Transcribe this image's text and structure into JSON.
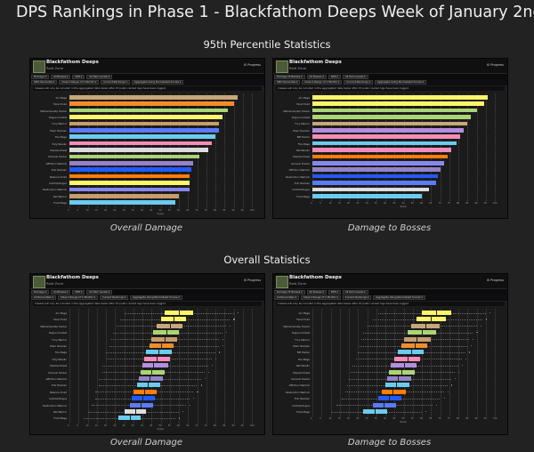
{
  "title": "DPS Rankings in Phase 1 - Blackfathom Deeps Week of January 2nd",
  "sections": {
    "percentile_title": "95th Percentile Statistics",
    "overall_title": "Overall Statistics"
  },
  "captions": {
    "overall_damage": "Overall Damage",
    "damage_to_bosses": "Damage to Bosses"
  },
  "panel": {
    "zone_name": "Blackfathom Deeps",
    "zone_sub": "Raid Zone",
    "progress": "⚙ Progress",
    "nav_overall": [
      "Damage ▾",
      "All Bosses ▾",
      "DPS ▾",
      "All Item Levels ▾"
    ],
    "nav_bosses": [
      "Damage To Bosses ▾",
      "All Bosses ▾",
      "DPS ▾",
      "All Item Levels ▾"
    ],
    "filters": [
      "95th Percentile ▾",
      "Class ▾ Range (if 1 Month) ▾",
      "Current Rankings ▾",
      "Aggregate Using Normalized Scores ▾"
    ],
    "filters_all": [
      "All Percentiles ▾",
      "Class ▾ Range (if 1 Month) ▾",
      "Current Rankings ▾",
      "Aggregate Using Normalized Scores ▾"
    ],
    "note": "Classes will only be included in the aggregated data below after 15 public ranked logs have been logged.",
    "axis_title": "Score"
  },
  "specs_overall": [
    "Arc Mage",
    "Feral Druid",
    "Marksmanship Hunter",
    "Rogue Combat",
    "Fury Warrior",
    "Elem Shaman",
    "Fire Mage",
    "Holy Paladin",
    "Shadow Priest",
    "Survival Hunter",
    "Affliction Warlock",
    "Enh Shaman",
    "Balance Druid",
    "Combat Rogue",
    "Destruction Warlock",
    "Ret Warrior",
    "Frost Mage"
  ],
  "specs_bosses": [
    "Arc Mage",
    "Feral Druid",
    "Marksmanship Hunter",
    "Rogue Combat",
    "Fury Warrior",
    "Elem Shaman",
    "BM Hunter",
    "Fire Mage",
    "Ret Paladin",
    "Shadow Priest",
    "Survival Hunter",
    "Affliction Warlock",
    "Destruction Warlock",
    "Enh Shaman",
    "Combat Rogue",
    "Frost Mage"
  ],
  "ticks": [
    "0",
    "5",
    "10",
    "15",
    "20",
    "25",
    "30",
    "35",
    "40",
    "45",
    "50",
    "55",
    "60",
    "65",
    "70",
    "75",
    "80",
    "85",
    "90",
    "95",
    "100"
  ],
  "chart_data": [
    {
      "type": "bar",
      "title": "95th Percentile Statistics — Overall Damage",
      "xlabel": "Score",
      "xlim": [
        0,
        100
      ],
      "categories": [
        "Arc Mage",
        "Feral Druid",
        "Marksmanship Hunter",
        "Rogue Combat",
        "Fury Warrior",
        "Elem Shaman",
        "Fire Mage",
        "Holy Paladin",
        "Shadow Priest",
        "Survival Hunter",
        "Affliction Warlock",
        "Enh Shaman",
        "Balance Druid",
        "Combat Rogue",
        "Destruction Warlock",
        "Ret Warrior",
        "Frost Mage"
      ],
      "values": [
        92,
        90,
        87,
        84,
        82,
        82,
        80,
        78,
        76,
        71,
        68,
        67,
        66,
        66,
        66,
        60,
        58
      ],
      "colors": [
        "#c8a77a",
        "#f38d2a",
        "#abd473",
        "#fff569",
        "#c79c6e",
        "#5a7bfa",
        "#69ccf0",
        "#f58cba",
        "#dddddd",
        "#abd473",
        "#9482c9",
        "#2459ff",
        "#ff7d0a",
        "#fff569",
        "#8788ee",
        "#c79c6e",
        "#69ccf0"
      ]
    },
    {
      "type": "bar",
      "title": "95th Percentile Statistics — Damage to Bosses",
      "xlabel": "Score",
      "xlim": [
        0,
        100
      ],
      "categories": [
        "Arc Mage",
        "Feral Druid",
        "Marksmanship Hunter",
        "Rogue Combat",
        "Fury Warrior",
        "Elem Shaman",
        "BM Hunter",
        "Fire Mage",
        "Ret Paladin",
        "Shadow Priest",
        "Survival Hunter",
        "Affliction Warlock",
        "Destruction Warlock",
        "Enh Shaman",
        "Combat Rogue",
        "Frost Mage"
      ],
      "values": [
        96,
        94,
        90,
        87,
        85,
        83,
        81,
        79,
        76,
        74,
        72,
        70,
        69,
        68,
        64,
        60
      ],
      "colors": [
        "#fff569",
        "#fff569",
        "#abd473",
        "#abd473",
        "#c8a77a",
        "#b48ee0",
        "#f58cba",
        "#69ccf0",
        "#f58cba",
        "#ff7d0a",
        "#8788ee",
        "#9482c9",
        "#2459ff",
        "#5a7bfa",
        "#dddddd",
        "#69ccf0"
      ]
    },
    {
      "type": "box",
      "title": "Overall Statistics — Overall Damage",
      "xlabel": "Score",
      "xlim": [
        0,
        100
      ],
      "categories": [
        "Arc Mage",
        "Feral Druid",
        "Marksmanship Hunter",
        "Rogue Combat",
        "Fury Warrior",
        "Elem Shaman",
        "Fire Mage",
        "Holy Paladin",
        "Shadow Priest",
        "Survival Hunter",
        "Affliction Warlock",
        "Enh Shaman",
        "Balance Druid",
        "Combat Rogue",
        "Destruction Warlock",
        "Ret Warrior",
        "Frost Mage"
      ],
      "series": [
        {
          "q1": 52,
          "median": 60,
          "q3": 68,
          "min": 30,
          "max": 90
        },
        {
          "q1": 50,
          "median": 57,
          "q3": 64,
          "min": 28,
          "max": 88
        },
        {
          "q1": 48,
          "median": 55,
          "q3": 62,
          "min": 26,
          "max": 86
        },
        {
          "q1": 46,
          "median": 53,
          "q3": 60,
          "min": 24,
          "max": 84
        },
        {
          "q1": 45,
          "median": 52,
          "q3": 59,
          "min": 23,
          "max": 82
        },
        {
          "q1": 44,
          "median": 50,
          "q3": 57,
          "min": 22,
          "max": 82
        },
        {
          "q1": 42,
          "median": 49,
          "q3": 56,
          "min": 20,
          "max": 80
        },
        {
          "q1": 41,
          "median": 48,
          "q3": 55,
          "min": 20,
          "max": 78
        },
        {
          "q1": 40,
          "median": 46,
          "q3": 54,
          "min": 18,
          "max": 76
        },
        {
          "q1": 39,
          "median": 45,
          "q3": 52,
          "min": 18,
          "max": 74
        },
        {
          "q1": 38,
          "median": 44,
          "q3": 51,
          "min": 16,
          "max": 72
        },
        {
          "q1": 37,
          "median": 43,
          "q3": 50,
          "min": 16,
          "max": 70
        },
        {
          "q1": 35,
          "median": 41,
          "q3": 48,
          "min": 14,
          "max": 68
        },
        {
          "q1": 34,
          "median": 40,
          "q3": 47,
          "min": 14,
          "max": 66
        },
        {
          "q1": 33,
          "median": 39,
          "q3": 46,
          "min": 12,
          "max": 64
        },
        {
          "q1": 30,
          "median": 36,
          "q3": 42,
          "min": 10,
          "max": 60
        },
        {
          "q1": 27,
          "median": 33,
          "q3": 39,
          "min": 8,
          "max": 58
        }
      ],
      "colors": [
        "#fff569",
        "#fff569",
        "#c8a77a",
        "#abd473",
        "#c79c6e",
        "#f38d2a",
        "#69ccf0",
        "#f58cba",
        "#b48ee0",
        "#abd473",
        "#9482c9",
        "#69ccf0",
        "#ff7d0a",
        "#2459ff",
        "#5a7bfa",
        "#dddddd",
        "#69ccf0"
      ]
    },
    {
      "type": "box",
      "title": "Overall Statistics — Damage to Bosses",
      "xlabel": "Score",
      "xlim": [
        0,
        100
      ],
      "categories": [
        "Arc Mage",
        "Feral Druid",
        "Marksmanship Hunter",
        "Rogue Combat",
        "Fury Warrior",
        "Elem Shaman",
        "BM Hunter",
        "Fire Mage",
        "Ret Paladin",
        "Shadow Priest",
        "Survival Hunter",
        "Affliction Warlock",
        "Destruction Warlock",
        "Enh Shaman",
        "Combat Rogue",
        "Frost Mage"
      ],
      "series": [
        {
          "q1": 60,
          "median": 68,
          "q3": 76,
          "min": 36,
          "max": 95
        },
        {
          "q1": 57,
          "median": 65,
          "q3": 73,
          "min": 33,
          "max": 93
        },
        {
          "q1": 54,
          "median": 62,
          "q3": 70,
          "min": 30,
          "max": 90
        },
        {
          "q1": 52,
          "median": 60,
          "q3": 68,
          "min": 28,
          "max": 88
        },
        {
          "q1": 50,
          "median": 57,
          "q3": 65,
          "min": 27,
          "max": 86
        },
        {
          "q1": 49,
          "median": 56,
          "q3": 63,
          "min": 26,
          "max": 85
        },
        {
          "q1": 47,
          "median": 54,
          "q3": 61,
          "min": 25,
          "max": 84
        },
        {
          "q1": 45,
          "median": 52,
          "q3": 59,
          "min": 24,
          "max": 82
        },
        {
          "q1": 43,
          "median": 50,
          "q3": 57,
          "min": 22,
          "max": 80
        },
        {
          "q1": 42,
          "median": 49,
          "q3": 56,
          "min": 21,
          "max": 78
        },
        {
          "q1": 41,
          "median": 47,
          "q3": 54,
          "min": 20,
          "max": 76
        },
        {
          "q1": 40,
          "median": 46,
          "q3": 53,
          "min": 19,
          "max": 74
        },
        {
          "q1": 38,
          "median": 44,
          "q3": 51,
          "min": 18,
          "max": 72
        },
        {
          "q1": 36,
          "median": 42,
          "q3": 49,
          "min": 16,
          "max": 70
        },
        {
          "q1": 33,
          "median": 39,
          "q3": 46,
          "min": 13,
          "max": 66
        },
        {
          "q1": 28,
          "median": 34,
          "q3": 41,
          "min": 10,
          "max": 60
        }
      ],
      "colors": [
        "#fff569",
        "#fff569",
        "#c8a77a",
        "#abd473",
        "#c79c6e",
        "#f38d2a",
        "#69ccf0",
        "#f58cba",
        "#b48ee0",
        "#abd473",
        "#9482c9",
        "#69ccf0",
        "#ff7d0a",
        "#2459ff",
        "#5a7bfa",
        "#69ccf0"
      ]
    }
  ]
}
